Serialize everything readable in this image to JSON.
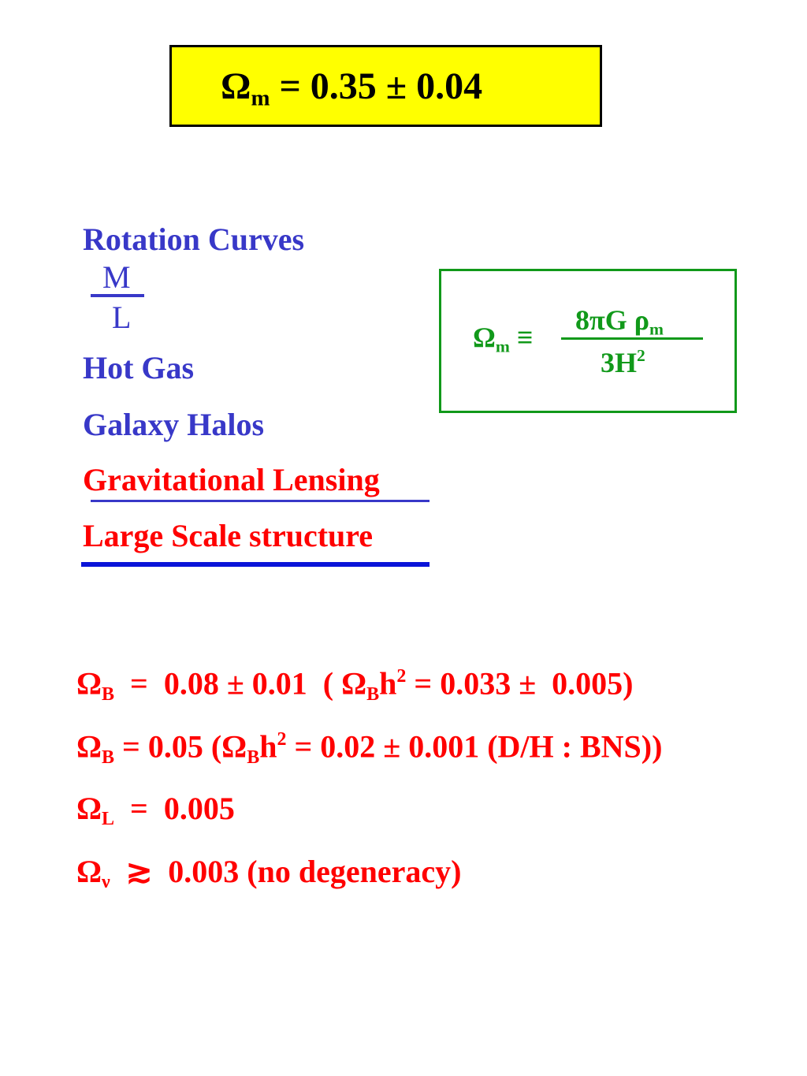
{
  "header": {
    "segments": [
      {
        "t": "Ω"
      },
      {
        "t": "m",
        "pos": "sub"
      },
      {
        "t": " = 0.35 ± 0.04"
      }
    ]
  },
  "methods": [
    "Rotation Curves",
    "Hot Gas",
    "Galaxy Halos",
    "Gravitational Lensing",
    "Large Scale structure"
  ],
  "ratio": {
    "numerator": "M",
    "denominator": "L"
  },
  "definition": {
    "lhs": [
      {
        "t": "Ω"
      },
      {
        "t": "m",
        "pos": "sub"
      },
      {
        "t": " ≡"
      }
    ],
    "numerator": [
      {
        "t": "8πG ρ"
      },
      {
        "t": "m",
        "pos": "sub"
      }
    ],
    "denominator": [
      {
        "t": "3H"
      },
      {
        "t": "2",
        "pos": "sup"
      }
    ]
  },
  "results": [
    [
      {
        "t": "Ω"
      },
      {
        "t": "B",
        "pos": "sub"
      },
      {
        "t": "  =  0.08 ± 0.01  ( Ω"
      },
      {
        "t": "B",
        "pos": "sub"
      },
      {
        "t": "h"
      },
      {
        "t": "2",
        "pos": "sup"
      },
      {
        "t": " = 0.033 ±  0.005)"
      }
    ],
    [
      {
        "t": "Ω"
      },
      {
        "t": "B",
        "pos": "sub"
      },
      {
        "t": " = 0.05 (Ω"
      },
      {
        "t": "B",
        "pos": "sub"
      },
      {
        "t": "h"
      },
      {
        "t": "2",
        "pos": "sup"
      },
      {
        "t": " = 0.02 ± 0.001 (D/H : BNS))"
      }
    ],
    [
      {
        "t": "Ω"
      },
      {
        "t": "L",
        "pos": "sub"
      },
      {
        "t": "  =  0.005"
      }
    ],
    [
      {
        "t": "Ω"
      },
      {
        "t": "ν",
        "pos": "sub"
      },
      {
        "t": "  ≳  0.003 (no degeneracy)"
      }
    ]
  ]
}
